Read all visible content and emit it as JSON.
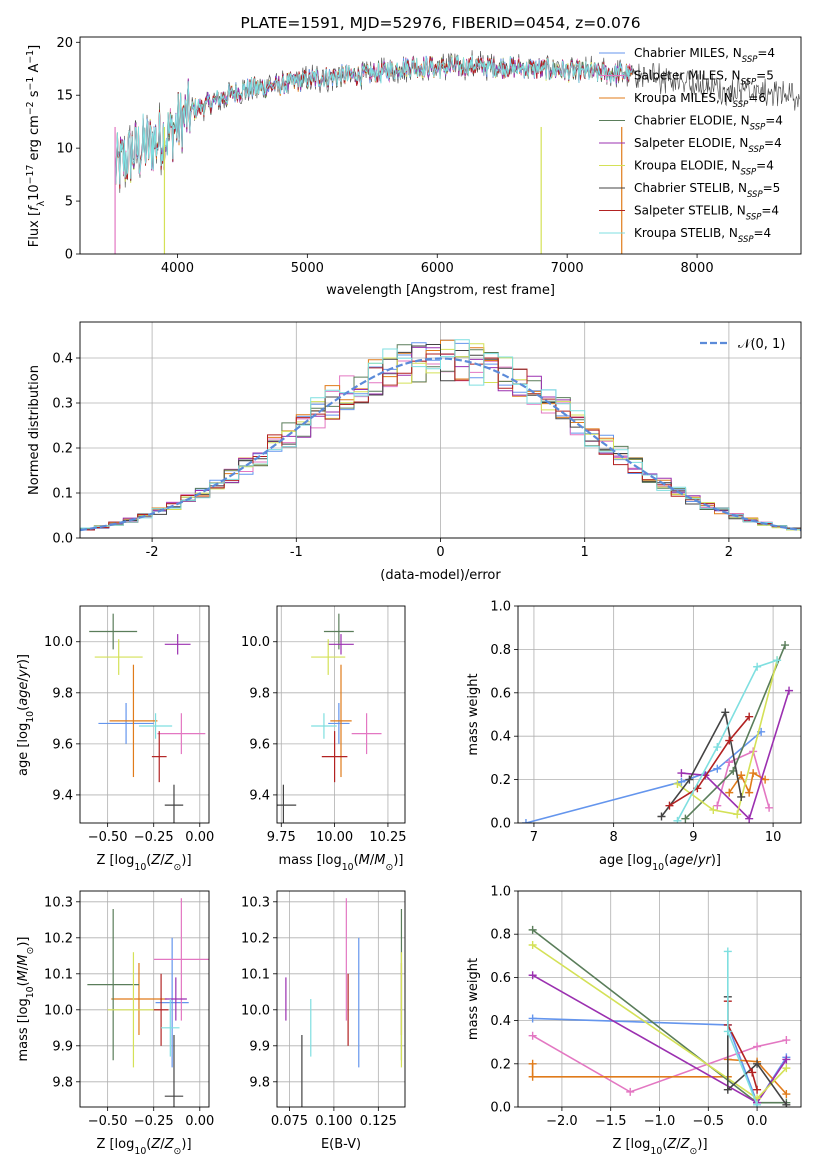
{
  "chart_data": [
    {
      "type": "line",
      "title": "PLATE=1591, MJD=52976, FIBERID=0454, z=0.076",
      "xlabel": "wavelength [Angstrom, rest frame]",
      "ylabel": "Flux [f_λ 10^-17 erg cm^-2 s^-1 A^-1]",
      "xlim": [
        3250,
        8800
      ],
      "ylim": [
        0,
        20.5
      ],
      "xticks": [
        4000,
        5000,
        6000,
        7000,
        8000
      ],
      "yticks": [
        0,
        5,
        10,
        15,
        20
      ],
      "grid": false,
      "legend": "upper right",
      "spectrum_envelope": {
        "x": [
          3520,
          3650,
          3800,
          3950,
          4100,
          4300,
          4500,
          4800,
          5000,
          5200,
          5500,
          5800,
          6000,
          6300,
          6600,
          6900,
          7200,
          7500,
          7800,
          8100,
          8400,
          8800
        ],
        "y": [
          8.0,
          9.5,
          10.5,
          11.5,
          13.5,
          14.5,
          15.5,
          16.0,
          16.5,
          16.8,
          17.0,
          17.8,
          17.6,
          17.8,
          17.6,
          17.4,
          17.2,
          17.0,
          16.5,
          15.8,
          15.4,
          15.0
        ]
      },
      "series": [
        {
          "name": "Chabrier MILES, N_SSP=4",
          "color": "#6495ed"
        },
        {
          "name": "Salpeter MILES, N_SSP=5",
          "color": "#e377c2"
        },
        {
          "name": "Kroupa MILES, N_SSP=6",
          "color": "#e07b1a"
        },
        {
          "name": "Chabrier ELODIE, N_SSP=4",
          "color": "#5a7d5a"
        },
        {
          "name": "Salpeter ELODIE, N_SSP=4",
          "color": "#9b30b0"
        },
        {
          "name": "Kroupa ELODIE, N_SSP=4",
          "color": "#d4e157"
        },
        {
          "name": "Chabrier STELIB, N_SSP=5",
          "color": "#444444"
        },
        {
          "name": "Salpeter STELIB, N_SSP=4",
          "color": "#b22222"
        },
        {
          "name": "Kroupa STELIB, N_SSP=4",
          "color": "#7fdfe0"
        }
      ]
    },
    {
      "type": "line",
      "xlabel": "(data-model)/error",
      "ylabel": "Normed distribution",
      "xlim": [
        -2.5,
        2.5
      ],
      "ylim": [
        0,
        0.48
      ],
      "xticks": [
        -2,
        -1,
        0,
        1,
        2
      ],
      "yticks": [
        0.0,
        0.1,
        0.2,
        0.3,
        0.4
      ],
      "grid": true,
      "legend": "upper right",
      "reference": {
        "name": "𝒩(0, 1)",
        "color": "#5b8bd9"
      },
      "histogram_bin_width": 0.1,
      "histogram_note": "step histograms for the 9 model fits scatter around the N(0,1) curve"
    },
    {
      "type": "scatter",
      "xlabel": "Z [log10(Z/Z⊙)]",
      "ylabel": "age  [log10(age/yr)]",
      "xlim": [
        -0.65,
        0.05
      ],
      "ylim": [
        9.29,
        10.14
      ],
      "xticks": [
        -0.5,
        -0.25,
        0.0
      ],
      "xticklabels": [
        "−0.50",
        "−0.25",
        "0.00"
      ],
      "yticks": [
        9.4,
        9.6,
        9.8,
        10.0
      ],
      "grid": true,
      "points": [
        {
          "x": -0.4,
          "y": 9.68,
          "xerr": 0.15,
          "yerr": 0.08,
          "color": "#6495ed"
        },
        {
          "x": -0.1,
          "y": 9.64,
          "xerr": 0.13,
          "yerr": 0.08,
          "color": "#e377c2"
        },
        {
          "x": -0.36,
          "y": 9.69,
          "xerr": 0.13,
          "yerr": 0.22,
          "color": "#e07b1a"
        },
        {
          "x": -0.47,
          "y": 10.04,
          "xerr": 0.13,
          "yerr": 0.07,
          "color": "#5a7d5a"
        },
        {
          "x": -0.12,
          "y": 9.99,
          "xerr": 0.07,
          "yerr": 0.04,
          "color": "#9b30b0"
        },
        {
          "x": -0.44,
          "y": 9.94,
          "xerr": 0.13,
          "yerr": 0.07,
          "color": "#d4e157"
        },
        {
          "x": -0.14,
          "y": 9.36,
          "xerr": 0.05,
          "yerr": 0.08,
          "color": "#444444"
        },
        {
          "x": -0.22,
          "y": 9.55,
          "xerr": 0.04,
          "yerr": 0.1,
          "color": "#b22222"
        },
        {
          "x": -0.24,
          "y": 9.67,
          "xerr": 0.09,
          "yerr": 0.05,
          "color": "#7fdfe0"
        }
      ]
    },
    {
      "type": "scatter",
      "xlabel": "mass [log10(M/M⊙)]",
      "xlim": [
        9.73,
        10.33
      ],
      "ylim": [
        9.29,
        10.14
      ],
      "xticks": [
        9.75,
        10.0,
        10.25
      ],
      "xticklabels": [
        "9.75",
        "10.00",
        "10.25"
      ],
      "yticks": [
        9.4,
        9.6,
        9.8,
        10.0
      ],
      "grid": true,
      "points": [
        {
          "x": 10.02,
          "y": 9.68,
          "xerr": 0.05,
          "yerr": 0.08,
          "color": "#6495ed"
        },
        {
          "x": 10.15,
          "y": 9.64,
          "xerr": 0.07,
          "yerr": 0.08,
          "color": "#e377c2"
        },
        {
          "x": 10.03,
          "y": 9.69,
          "xerr": 0.05,
          "yerr": 0.22,
          "color": "#e07b1a"
        },
        {
          "x": 10.02,
          "y": 10.04,
          "xerr": 0.07,
          "yerr": 0.07,
          "color": "#5a7d5a"
        },
        {
          "x": 10.03,
          "y": 9.99,
          "xerr": 0.06,
          "yerr": 0.04,
          "color": "#9b30b0"
        },
        {
          "x": 9.97,
          "y": 9.94,
          "xerr": 0.08,
          "yerr": 0.07,
          "color": "#d4e157"
        },
        {
          "x": 9.76,
          "y": 9.36,
          "xerr": 0.06,
          "yerr": 0.08,
          "color": "#444444"
        },
        {
          "x": 10.0,
          "y": 9.55,
          "xerr": 0.06,
          "yerr": 0.1,
          "color": "#b22222"
        },
        {
          "x": 9.95,
          "y": 9.67,
          "xerr": 0.06,
          "yerr": 0.05,
          "color": "#7fdfe0"
        }
      ]
    },
    {
      "type": "line",
      "xlabel": "age  [log10(age/yr)]",
      "ylabel": "mass weight",
      "xlim": [
        6.8,
        10.35
      ],
      "ylim": [
        0,
        1.0
      ],
      "xticks": [
        7,
        8,
        9,
        10
      ],
      "yticks": [
        0.0,
        0.2,
        0.4,
        0.6,
        0.8,
        1.0
      ],
      "grid": true,
      "series": [
        {
          "color": "#6495ed",
          "x": [
            6.9,
            8.85,
            9.3,
            9.85
          ],
          "y": [
            0.0,
            0.19,
            0.25,
            0.42
          ]
        },
        {
          "color": "#e377c2",
          "x": [
            9.3,
            9.45,
            9.75,
            9.95
          ],
          "y": [
            0.08,
            0.28,
            0.33,
            0.07
          ]
        },
        {
          "color": "#e07b1a",
          "x": [
            9.45,
            9.6,
            9.7,
            9.75,
            9.9
          ],
          "y": [
            0.14,
            0.22,
            0.14,
            0.23,
            0.2
          ]
        },
        {
          "color": "#5a7d5a",
          "x": [
            8.9,
            9.5,
            10.15
          ],
          "y": [
            0.02,
            0.24,
            0.82
          ]
        },
        {
          "color": "#9b30b0",
          "x": [
            8.85,
            9.15,
            9.7,
            10.2
          ],
          "y": [
            0.23,
            0.22,
            0.02,
            0.61
          ]
        },
        {
          "color": "#d4e157",
          "x": [
            8.8,
            9.25,
            9.55,
            10.05
          ],
          "y": [
            0.18,
            0.06,
            0.04,
            0.75
          ]
        },
        {
          "color": "#444444",
          "x": [
            8.6,
            8.95,
            9.4,
            9.6
          ],
          "y": [
            0.03,
            0.2,
            0.51,
            0.12
          ]
        },
        {
          "color": "#b22222",
          "x": [
            8.7,
            9.05,
            9.45,
            9.7
          ],
          "y": [
            0.08,
            0.16,
            0.38,
            0.49
          ]
        },
        {
          "color": "#7fdfe0",
          "x": [
            8.8,
            9.3,
            9.8,
            10.05
          ],
          "y": [
            0.01,
            0.35,
            0.72,
            0.75
          ]
        }
      ]
    },
    {
      "type": "scatter",
      "xlabel": "Z [log10(Z/Z⊙)]",
      "ylabel": "mass [log10(M/M⊙)]",
      "xlim": [
        -0.65,
        0.05
      ],
      "ylim": [
        9.73,
        10.33
      ],
      "xticks": [
        -0.5,
        -0.25,
        0.0
      ],
      "xticklabels": [
        "−0.50",
        "−0.25",
        "0.00"
      ],
      "yticks": [
        9.8,
        9.9,
        10.0,
        10.1,
        10.2,
        10.3
      ],
      "grid": true,
      "points": [
        {
          "x": -0.15,
          "y": 10.02,
          "xerr": 0.09,
          "yerr": 0.18,
          "color": "#6495ed"
        },
        {
          "x": -0.1,
          "y": 10.14,
          "xerr": 0.15,
          "yerr": 0.17,
          "color": "#e377c2"
        },
        {
          "x": -0.33,
          "y": 10.03,
          "xerr": 0.15,
          "yerr": 0.1,
          "color": "#e07b1a"
        },
        {
          "x": -0.47,
          "y": 10.07,
          "xerr": 0.14,
          "yerr": 0.21,
          "color": "#5a7d5a"
        },
        {
          "x": -0.13,
          "y": 10.03,
          "xerr": 0.06,
          "yerr": 0.06,
          "color": "#9b30b0"
        },
        {
          "x": -0.36,
          "y": 10.0,
          "xerr": 0.14,
          "yerr": 0.16,
          "color": "#d4e157"
        },
        {
          "x": -0.14,
          "y": 9.76,
          "xerr": 0.05,
          "yerr": 0.17,
          "color": "#444444"
        },
        {
          "x": -0.21,
          "y": 10.0,
          "xerr": 0.04,
          "yerr": 0.1,
          "color": "#b22222"
        },
        {
          "x": -0.16,
          "y": 9.95,
          "xerr": 0.05,
          "yerr": 0.08,
          "color": "#7fdfe0"
        }
      ]
    },
    {
      "type": "scatter",
      "xlabel": "E(B-V)",
      "xlim": [
        0.068,
        0.14
      ],
      "ylim": [
        9.73,
        10.33
      ],
      "xticks": [
        0.075,
        0.1,
        0.125
      ],
      "xticklabels": [
        "0.075",
        "0.100",
        "0.125"
      ],
      "yticks": [
        9.8,
        9.9,
        10.0,
        10.1,
        10.2,
        10.3
      ],
      "grid": true,
      "points": [
        {
          "x": 0.114,
          "y": 10.02,
          "yerr": 0.18,
          "color": "#6495ed"
        },
        {
          "x": 0.107,
          "y": 10.14,
          "yerr": 0.17,
          "color": "#e377c2"
        },
        {
          "x": 0.138,
          "y": 10.03,
          "yerr": 0.1,
          "color": "#e07b1a"
        },
        {
          "x": 0.138,
          "y": 10.07,
          "yerr": 0.21,
          "color": "#5a7d5a"
        },
        {
          "x": 0.073,
          "y": 10.03,
          "yerr": 0.06,
          "color": "#9b30b0"
        },
        {
          "x": 0.138,
          "y": 10.0,
          "yerr": 0.16,
          "color": "#d4e157"
        },
        {
          "x": 0.082,
          "y": 9.76,
          "yerr": 0.17,
          "color": "#444444"
        },
        {
          "x": 0.108,
          "y": 10.0,
          "yerr": 0.1,
          "color": "#b22222"
        },
        {
          "x": 0.087,
          "y": 9.95,
          "yerr": 0.08,
          "color": "#7fdfe0"
        }
      ]
    },
    {
      "type": "line",
      "xlabel": "Z [log10(Z/Z⊙)]",
      "ylabel": "mass weight",
      "xlim": [
        -2.45,
        0.45
      ],
      "ylim": [
        0,
        1.0
      ],
      "xticks": [
        -2.0,
        -1.5,
        -1.0,
        -0.5,
        0.0
      ],
      "xticklabels": [
        "−2.0",
        "−1.5",
        "−1.0",
        "−0.5",
        "0.0"
      ],
      "yticks": [
        0.0,
        0.2,
        0.4,
        0.6,
        0.8,
        1.0
      ],
      "grid": true,
      "series": [
        {
          "color": "#6495ed",
          "x": [
            -2.3,
            -0.3,
            0.0,
            0.3
          ],
          "y": [
            0.41,
            0.38,
            0.02,
            0.23
          ]
        },
        {
          "color": "#e377c2",
          "x": [
            -2.3,
            -1.3,
            0.0,
            0.3
          ],
          "y": [
            0.33,
            0.07,
            0.28,
            0.31
          ]
        },
        {
          "color": "#e07b1a",
          "x": [
            -2.3,
            -2.3,
            -0.3,
            -0.3,
            0.0,
            0.3
          ],
          "y": [
            0.2,
            0.14,
            0.14,
            0.22,
            0.21,
            0.06
          ]
        },
        {
          "color": "#5a7d5a",
          "x": [
            -2.3,
            0.0,
            0.3
          ],
          "y": [
            0.82,
            0.02,
            0.02
          ]
        },
        {
          "color": "#9b30b0",
          "x": [
            -2.3,
            0.0,
            0.3
          ],
          "y": [
            0.61,
            0.02,
            0.22
          ]
        },
        {
          "color": "#d4e157",
          "x": [
            -2.3,
            0.0,
            0.3
          ],
          "y": [
            0.75,
            0.04,
            0.18
          ]
        },
        {
          "color": "#444444",
          "x": [
            -0.3,
            -0.3,
            0.0,
            0.3
          ],
          "y": [
            0.51,
            0.08,
            0.2,
            0.01
          ]
        },
        {
          "color": "#b22222",
          "x": [
            -0.3,
            -0.3,
            -0.05,
            0.0
          ],
          "y": [
            0.49,
            0.38,
            0.16,
            0.08
          ]
        },
        {
          "color": "#7fdfe0",
          "x": [
            -0.3,
            -0.3,
            0.0
          ],
          "y": [
            0.72,
            0.35,
            0.01
          ]
        }
      ]
    }
  ]
}
